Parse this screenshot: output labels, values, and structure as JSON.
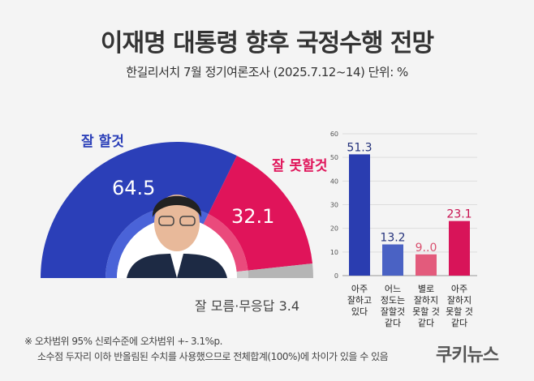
{
  "header": {
    "title": "이재명 대통령 향후 국정수행 전망",
    "subtitle": "한길리서치 7월 정기여론조사 (2025.7.12~14) 단위: %"
  },
  "chart_data": [
    {
      "type": "pie",
      "shape": "half-donut",
      "slices": [
        {
          "label": "잘 할것",
          "value": 64.5,
          "color": "#2b3fb8",
          "inner_color": "#4a63d8"
        },
        {
          "label": "잘 못할것",
          "value": 32.1,
          "color": "#e0145a",
          "inner_color": "#ea4a7c"
        },
        {
          "label": "잘 모름·무응답",
          "value": 3.4,
          "color": "#b5b5b5",
          "inner_color": "#cfcfcf"
        }
      ]
    },
    {
      "type": "bar",
      "ylim": [
        0,
        60
      ],
      "yticks": [
        0,
        10,
        20,
        30,
        40,
        50,
        60
      ],
      "grid": true,
      "categories": [
        "아주 잘하고 있다",
        "어느 정도는 잘할것 같다",
        "별로 잘하지 못할 것 같다",
        "아주 잘하지 못할 것 같다"
      ],
      "category_lines": [
        [
          "아주",
          "잘하고",
          "있다"
        ],
        [
          "어느",
          "정도는",
          "잘할것",
          "같다"
        ],
        [
          "별로",
          "잘하지",
          "못할 것",
          "같다"
        ],
        [
          "아주",
          "잘하지",
          "못할 것",
          "같다"
        ]
      ],
      "values": [
        51.3,
        13.2,
        9.0,
        23.1
      ],
      "data_labels": [
        "51.3",
        "13.2",
        "9..0",
        "23.1"
      ],
      "colors": [
        "#2a3db0",
        "#4a62c4",
        "#e35b7c",
        "#d81459"
      ]
    }
  ],
  "notes": [
    "※ 오차범위 95% 신뢰수준에 오차범위 +- 3.1%p.",
    "소수점 두자리 이하 반올림된 수치를 사용했으므로 전체합계(100%)에 차이가 있을 수 있음"
  ],
  "logo": "쿠키뉴스"
}
